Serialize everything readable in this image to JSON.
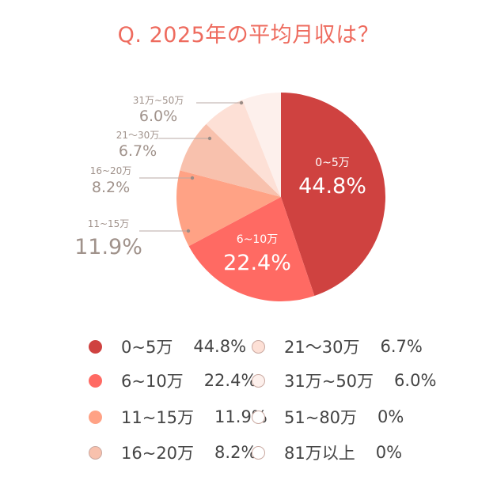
{
  "title": "Q. 2025年の平均月収は？",
  "chart_data": {
    "type": "pie",
    "title": "Q. 2025年の平均月収は？",
    "slices": [
      {
        "label": "0~5万",
        "value": 44.8,
        "display": "44.8%",
        "color": "#cf4240"
      },
      {
        "label": "6~10万",
        "value": 22.4,
        "display": "22.4%",
        "color": "#ff6a63"
      },
      {
        "label": "11~15万",
        "value": 11.9,
        "display": "11.9%",
        "color": "#ffa285"
      },
      {
        "label": "16~20万",
        "value": 8.2,
        "display": "8.2%",
        "color": "#f8c1ad"
      },
      {
        "label": "21〜30万",
        "value": 6.7,
        "display": "6.7%",
        "color": "#fde0d6"
      },
      {
        "label": "31万~50万",
        "value": 6.0,
        "display": "6.0%",
        "color": "#fdf0ec"
      },
      {
        "label": "51~80万",
        "value": 0,
        "display": "0%",
        "color": "#ffffff"
      },
      {
        "label": "81万以上",
        "value": 0,
        "display": "0%",
        "color": "#ffffff"
      }
    ],
    "callout_labels": [
      "31万~50万",
      "21〜30万",
      "16~20万",
      "11~15万"
    ],
    "legend_placement": "bottom",
    "colors": {
      "title": "#ee6b5e",
      "callout_text": "#a0928b",
      "legend_text": "#444444",
      "swatch_border": "#c9a8a0"
    }
  }
}
